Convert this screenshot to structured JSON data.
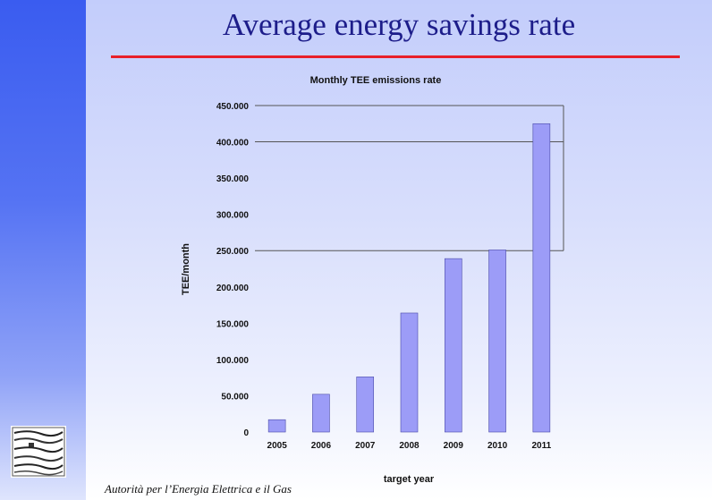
{
  "slide": {
    "title": "Average energy savings rate",
    "footer": "Autorità per l’Energia Elettrica e il Gas"
  },
  "colors": {
    "title": "#1d1d8a",
    "rule": "#e8202a",
    "bar": "#9c9cf7",
    "sidebar": "#3a5cf0"
  },
  "chart_data": {
    "type": "bar",
    "title": "Monthly TEE emissions rate",
    "xlabel": "target year",
    "ylabel": "TEE/month",
    "categories": [
      "2005",
      "2006",
      "2007",
      "2008",
      "2009",
      "2010",
      "2011"
    ],
    "values": [
      17000,
      52000,
      76000,
      164000,
      239000,
      251000,
      425000
    ],
    "ylim": [
      0,
      450000
    ],
    "yticks": [
      0,
      50000,
      100000,
      150000,
      200000,
      250000,
      300000,
      350000,
      400000,
      450000
    ],
    "ytick_labels": [
      "0",
      "50.000",
      "100.000",
      "150.000",
      "200.000",
      "250.000",
      "300.000",
      "350.000",
      "400.000",
      "450.000"
    ],
    "gridlines": [
      250000,
      400000,
      450000
    ],
    "legend": "none"
  }
}
